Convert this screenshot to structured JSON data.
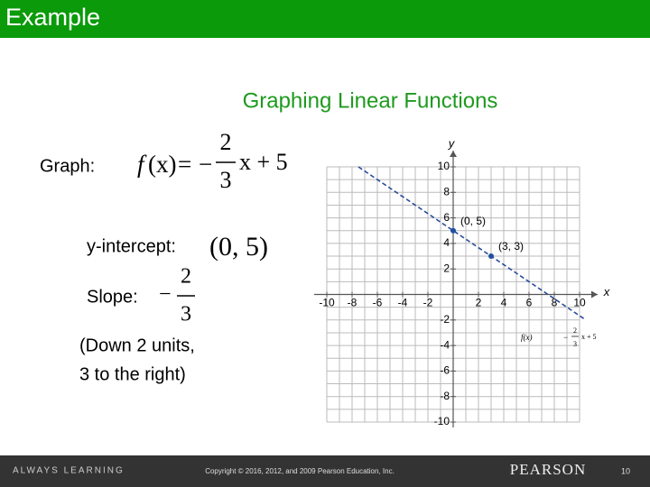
{
  "header": {
    "title": "Example"
  },
  "slide": {
    "title": "Graphing Linear Functions",
    "graph_label": "Graph:",
    "function": {
      "name": "f",
      "arg": "(x)",
      "equals": "=",
      "minus": "−",
      "num": "2",
      "den": "3",
      "rest": "x + 5"
    },
    "intercept_label": "y-intercept:",
    "intercept": "(0, 5)",
    "slope_label": "Slope:",
    "slope": {
      "minus": "−",
      "num": "2",
      "den": "3"
    },
    "note": [
      "(Down 2 units,",
      "3 to the right)"
    ]
  },
  "chart_data": {
    "type": "line",
    "x_label": "x",
    "y_label": "y",
    "xlim": [
      -10,
      10
    ],
    "ylim": [
      -10,
      10
    ],
    "xticks": [
      -10,
      -8,
      -6,
      -4,
      -2,
      2,
      4,
      6,
      8,
      10
    ],
    "yticks": [
      -10,
      -8,
      -6,
      -4,
      -2,
      2,
      4,
      6,
      8,
      10
    ],
    "grid": true,
    "xgrid": [
      -10,
      -9,
      -8,
      -7,
      -6,
      -5,
      -4,
      -3,
      -2,
      -1,
      0,
      1,
      2,
      3,
      4,
      5,
      6,
      7,
      8,
      9,
      10
    ],
    "ygrid": [
      -10,
      -9,
      -8,
      -7,
      -6,
      -5,
      -4,
      -3,
      -2,
      -1,
      0,
      1,
      2,
      3,
      4,
      5,
      6,
      7,
      8,
      9,
      10
    ],
    "series": [
      {
        "x": [
          -7.5,
          10.5
        ],
        "values": [
          10,
          -2
        ],
        "color": "#2b4c9c",
        "dashed": true
      }
    ],
    "points": {
      "x": [
        0,
        3
      ],
      "values": [
        5,
        3
      ],
      "labels": [
        "(0, 5)",
        "(3, 3)"
      ],
      "color": "#1f4fa0"
    },
    "annotation": {
      "name": "f(x)",
      "minus": "−",
      "num": "2",
      "den": "3",
      "rest": "x + 5"
    }
  },
  "footer": {
    "tagline": "ALWAYS LEARNING",
    "copyright": "Copyright © 2016, 2012, and 2009 Pearson Education, Inc.",
    "brand": "PEARSON",
    "page": "10"
  }
}
